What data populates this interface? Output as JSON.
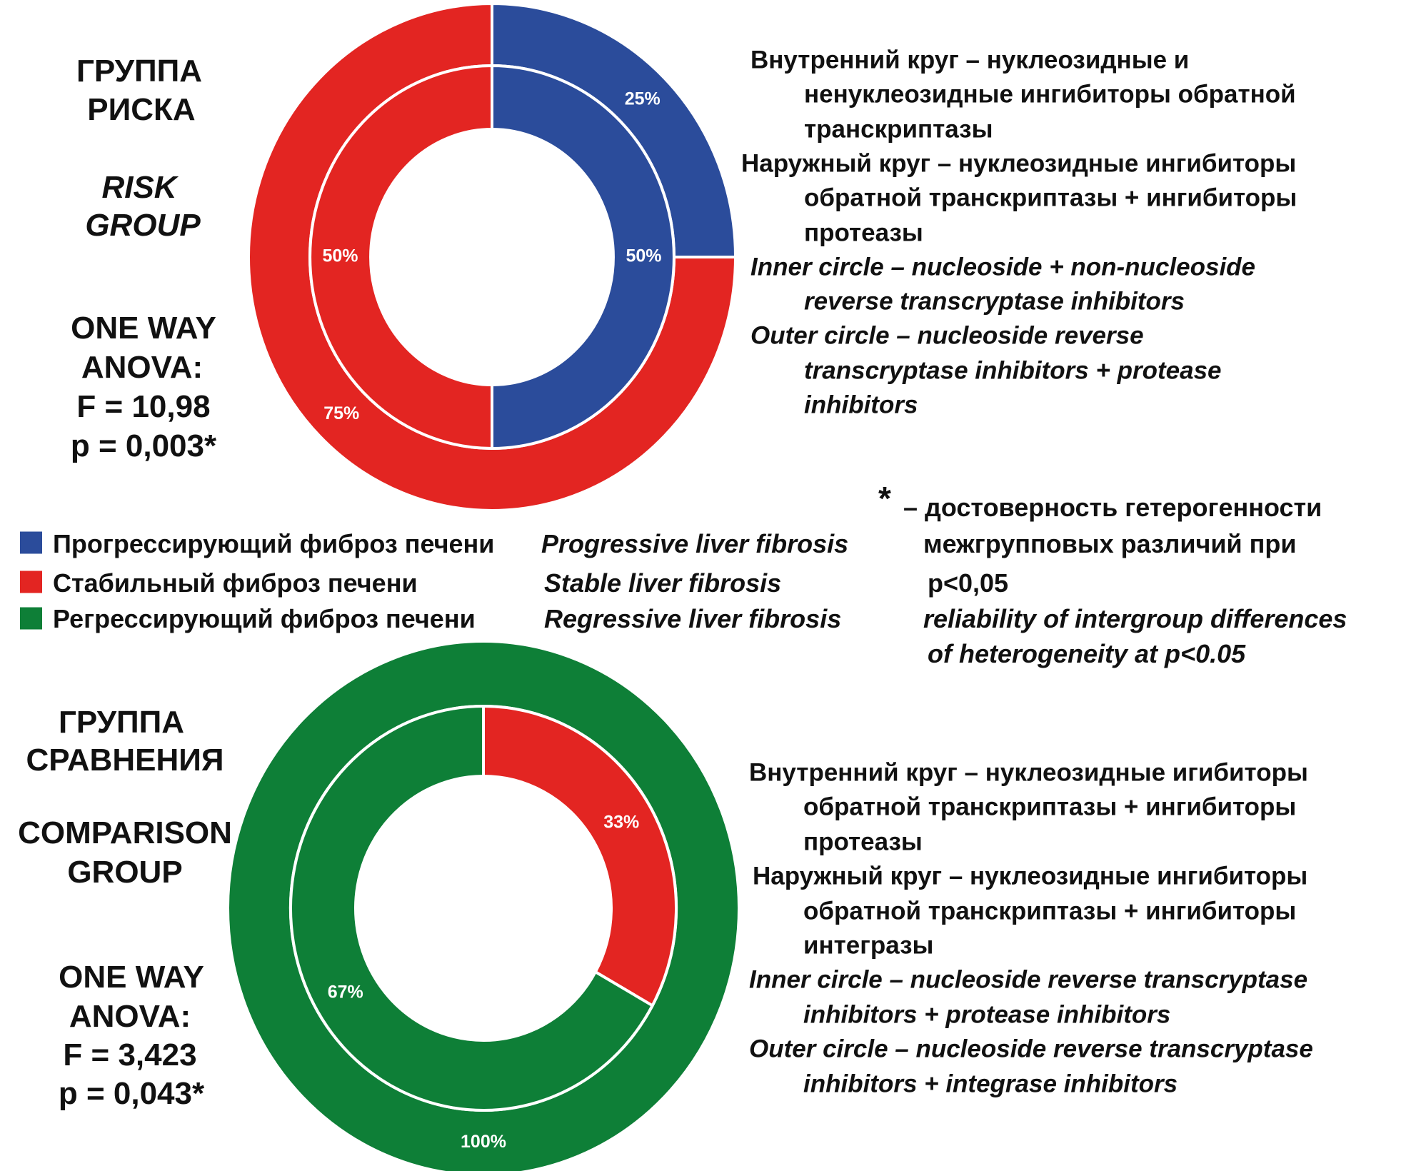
{
  "colors": {
    "progressive": "#2B4C9B",
    "stable": "#E32522",
    "regressive": "#0E7F37"
  },
  "chart_data": [
    {
      "type": "pie",
      "subtype": "double-donut",
      "title_ru": [
        "ГРУППА",
        "РИСКА"
      ],
      "title_en": [
        "RISK",
        "GROUP"
      ],
      "stats": [
        "ONE WAY",
        "ANOVA:",
        "F = 10,98",
        "p = 0,003*"
      ],
      "inner": [
        {
          "category": "progressive",
          "value": 50,
          "label": "50%"
        },
        {
          "category": "stable",
          "value": 50,
          "label": "50%"
        }
      ],
      "outer": [
        {
          "category": "progressive",
          "value": 25,
          "label": "25%"
        },
        {
          "category": "stable",
          "value": 75,
          "label": "75%"
        }
      ],
      "description": [
        {
          "text": "Внутренний  круг – нуклеозидные и",
          "indent": false,
          "italic": false
        },
        {
          "text": "ненуклеозидные ингибиторы  обратной",
          "indent": true,
          "italic": false
        },
        {
          "text": "транскриптазы",
          "indent": true,
          "italic": false
        },
        {
          "text": "Наружный круг – нуклеозидные ингибиторы",
          "indent": false,
          "italic": false
        },
        {
          "text": "обратной  транскриптазы  + ингибиторы",
          "indent": true,
          "italic": false
        },
        {
          "text": "протеазы",
          "indent": true,
          "italic": false
        },
        {
          "text": "Inner circle – nucleoside  + non-nucleoside",
          "indent": false,
          "italic": true
        },
        {
          "text": "reverse  transcryptase  inhibitors",
          "indent": true,
          "italic": true
        },
        {
          "text": "Outer circle – nucleoside  reverse",
          "indent": false,
          "italic": true
        },
        {
          "text": "transcryptase  inhibitors  + protease",
          "indent": true,
          "italic": true
        },
        {
          "text": "inhibitors",
          "indent": true,
          "italic": true
        }
      ]
    },
    {
      "type": "pie",
      "subtype": "double-donut",
      "title_ru": [
        "ГРУППА",
        "СРАВНЕНИЯ"
      ],
      "title_en": [
        "COMPARISON",
        "GROUP"
      ],
      "stats": [
        "ONE WAY",
        "ANOVA:",
        "F = 3,423",
        "p = 0,043*"
      ],
      "inner": [
        {
          "category": "stable",
          "value": 33,
          "label": "33%"
        },
        {
          "category": "regressive",
          "value": 67,
          "label": "67%"
        }
      ],
      "outer": [
        {
          "category": "regressive",
          "value": 100,
          "label": "100%"
        }
      ],
      "description": [
        {
          "text": "Внутренний  круг – нуклеозидные игибиторы",
          "indent": false,
          "italic": false
        },
        {
          "text": "обратной  транскриптазы  + ингибиторы",
          "indent": true,
          "italic": false
        },
        {
          "text": "протеазы",
          "indent": true,
          "italic": false
        },
        {
          "text": "Наружный круг – нуклеозидные ингибиторы",
          "indent": false,
          "italic": false
        },
        {
          "text": "обратной  транскриптазы  + ингибиторы",
          "indent": true,
          "italic": false
        },
        {
          "text": "интегразы",
          "indent": true,
          "italic": false
        },
        {
          "text": "Inner circle – nucleoside  reverse  transcryptase",
          "indent": false,
          "italic": true
        },
        {
          "text": "inhibitors + protease inhibitors",
          "indent": true,
          "italic": true
        },
        {
          "text": "Outer circle – nucleoside  reverse  transcryptase",
          "indent": false,
          "italic": true
        },
        {
          "text": "inhibitors + integrase inhibitors",
          "indent": true,
          "italic": true
        }
      ]
    }
  ],
  "legend": [
    {
      "category": "progressive",
      "ru": "Прогрессирующий  фиброз  печени",
      "en": "Progressive liver fibrosis"
    },
    {
      "category": "stable",
      "ru": "Стабильный  фиброз  печени",
      "en": "Stable liver fibrosis"
    },
    {
      "category": "regressive",
      "ru": "Регрессирующий  фиброз  печени",
      "en": "Regressive liver fibrosis"
    }
  ],
  "footnote": {
    "asterisk": "*",
    "lines": [
      "– достоверность  гетерогенности",
      "межгрупповых различий  при",
      "p<0,05"
    ],
    "lines_en": [
      "reliability  of intergroup  differences",
      "of heterogeneity at p<0.05"
    ]
  }
}
